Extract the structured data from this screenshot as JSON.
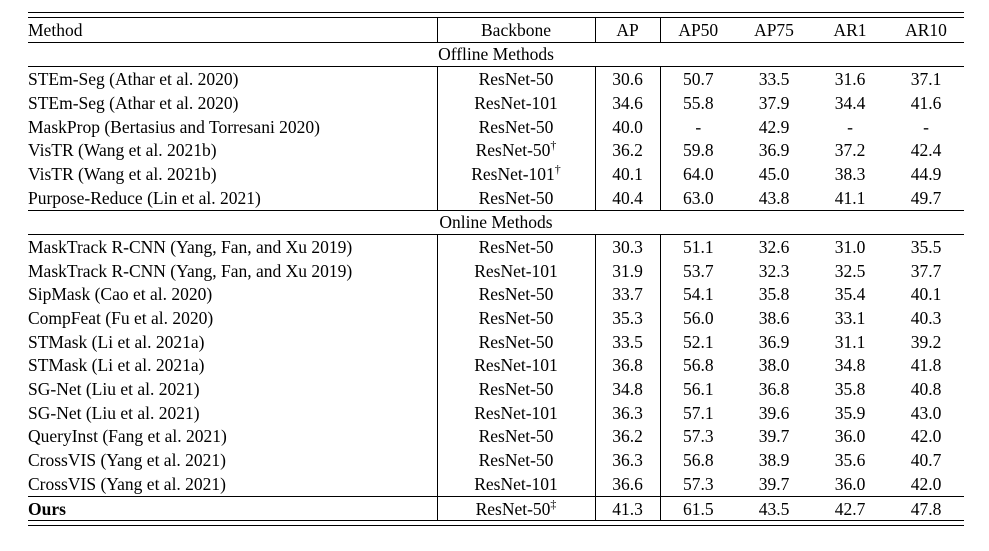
{
  "table": {
    "columns": [
      "Method",
      "Backbone",
      "AP",
      "AP50",
      "AP75",
      "AR1",
      "AR10"
    ],
    "sections": [
      {
        "label": "Offline Methods",
        "rows": [
          {
            "method": "STEm-Seg (Athar et al. 2020)",
            "backbone": "ResNet-50",
            "backbone_sup": "",
            "values": [
              "30.6",
              "50.7",
              "33.5",
              "31.6",
              "37.1"
            ]
          },
          {
            "method": "STEm-Seg (Athar et al. 2020)",
            "backbone": "ResNet-101",
            "backbone_sup": "",
            "values": [
              "34.6",
              "55.8",
              "37.9",
              "34.4",
              "41.6"
            ]
          },
          {
            "method": "MaskProp (Bertasius and Torresani 2020)",
            "backbone": "ResNet-50",
            "backbone_sup": "",
            "values": [
              "40.0",
              "-",
              "42.9",
              "-",
              "-"
            ]
          },
          {
            "method": "VisTR (Wang et al. 2021b)",
            "backbone": "ResNet-50",
            "backbone_sup": "†",
            "values": [
              "36.2",
              "59.8",
              "36.9",
              "37.2",
              "42.4"
            ]
          },
          {
            "method": "VisTR (Wang et al. 2021b)",
            "backbone": "ResNet-101",
            "backbone_sup": "†",
            "values": [
              "40.1",
              "64.0",
              "45.0",
              "38.3",
              "44.9"
            ]
          },
          {
            "method": "Purpose-Reduce (Lin et al. 2021)",
            "backbone": "ResNet-50",
            "backbone_sup": "",
            "values": [
              "40.4",
              "63.0",
              "43.8",
              "41.1",
              "49.7"
            ]
          }
        ]
      },
      {
        "label": "Online Methods",
        "rows": [
          {
            "method": "MaskTrack R-CNN (Yang, Fan, and Xu 2019)",
            "backbone": "ResNet-50",
            "backbone_sup": "",
            "values": [
              "30.3",
              "51.1",
              "32.6",
              "31.0",
              "35.5"
            ]
          },
          {
            "method": "MaskTrack R-CNN (Yang, Fan, and Xu 2019)",
            "backbone": "ResNet-101",
            "backbone_sup": "",
            "values": [
              "31.9",
              "53.7",
              "32.3",
              "32.5",
              "37.7"
            ]
          },
          {
            "method": "SipMask (Cao et al. 2020)",
            "backbone": "ResNet-50",
            "backbone_sup": "",
            "values": [
              "33.7",
              "54.1",
              "35.8",
              "35.4",
              "40.1"
            ]
          },
          {
            "method": "CompFeat (Fu et al. 2020)",
            "backbone": "ResNet-50",
            "backbone_sup": "",
            "values": [
              "35.3",
              "56.0",
              "38.6",
              "33.1",
              "40.3"
            ]
          },
          {
            "method": "STMask (Li et al. 2021a)",
            "backbone": "ResNet-50",
            "backbone_sup": "",
            "values": [
              "33.5",
              "52.1",
              "36.9",
              "31.1",
              "39.2"
            ]
          },
          {
            "method": "STMask (Li et al. 2021a)",
            "backbone": "ResNet-101",
            "backbone_sup": "",
            "values": [
              "36.8",
              "56.8",
              "38.0",
              "34.8",
              "41.8"
            ]
          },
          {
            "method": "SG-Net (Liu et al. 2021)",
            "backbone": "ResNet-50",
            "backbone_sup": "",
            "values": [
              "34.8",
              "56.1",
              "36.8",
              "35.8",
              "40.8"
            ]
          },
          {
            "method": "SG-Net (Liu et al. 2021)",
            "backbone": "ResNet-101",
            "backbone_sup": "",
            "values": [
              "36.3",
              "57.1",
              "39.6",
              "35.9",
              "43.0"
            ]
          },
          {
            "method": "QueryInst (Fang et al. 2021)",
            "backbone": "ResNet-50",
            "backbone_sup": "",
            "values": [
              "36.2",
              "57.3",
              "39.7",
              "36.0",
              "42.0"
            ]
          },
          {
            "method": "CrossVIS (Yang et al. 2021)",
            "backbone": "ResNet-50",
            "backbone_sup": "",
            "values": [
              "36.3",
              "56.8",
              "38.9",
              "35.6",
              "40.7"
            ]
          },
          {
            "method": "CrossVIS (Yang et al. 2021)",
            "backbone": "ResNet-101",
            "backbone_sup": "",
            "values": [
              "36.6",
              "57.3",
              "39.7",
              "36.0",
              "42.0"
            ]
          }
        ]
      }
    ],
    "final_row": {
      "method": "Ours",
      "backbone": "ResNet-50",
      "backbone_sup": "‡",
      "values": [
        "41.3",
        "61.5",
        "43.5",
        "42.7",
        "47.8"
      ]
    }
  }
}
